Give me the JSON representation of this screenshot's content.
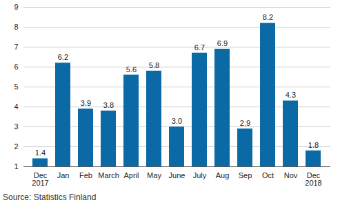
{
  "chart_data": {
    "type": "bar",
    "caption": "Source: Statistics Finland",
    "categories": [
      "Dec\n2017",
      "Jan",
      "Feb",
      "March",
      "April",
      "May",
      "June",
      "July",
      "Aug",
      "Sep",
      "Oct",
      "Nov",
      "Dec\n2018"
    ],
    "values": [
      1.4,
      6.2,
      3.9,
      3.8,
      5.6,
      5.8,
      3.0,
      6.7,
      6.9,
      2.9,
      8.2,
      4.3,
      1.8
    ],
    "value_labels": [
      "1.4",
      "6.2",
      "3.9",
      "3.8",
      "5.6",
      "5.8",
      "3.0",
      "6.7",
      "6.9",
      "2.9",
      "8.2",
      "4.3",
      "1.8"
    ],
    "color": "#0b6aa6",
    "ylim": [
      1,
      9
    ],
    "yticks": [
      1,
      2,
      3,
      4,
      5,
      6,
      7,
      8,
      9
    ],
    "grid": true,
    "data_labels": true
  }
}
